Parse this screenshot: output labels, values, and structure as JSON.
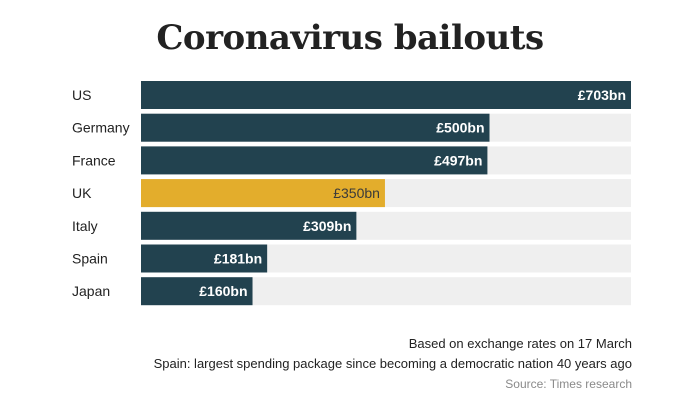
{
  "title": "Coronavirus bailouts",
  "chart_data": {
    "type": "bar",
    "orientation": "horizontal",
    "categories": [
      "US",
      "Germany",
      "France",
      "UK",
      "Italy",
      "Spain",
      "Japan"
    ],
    "values": [
      703,
      500,
      497,
      350,
      309,
      181,
      160
    ],
    "value_labels": [
      "£703bn",
      "£500bn",
      "£497bn",
      "£350bn",
      "£309bn",
      "£181bn",
      "£160bn"
    ],
    "unit": "£bn",
    "xlim": [
      0,
      703
    ],
    "highlight": "UK",
    "colors": {
      "bar": "#22424f",
      "highlight": "#e3ad2c",
      "track": "#efefef",
      "label_on_dark": "#ffffff",
      "label_on_highlight": "#3a3a3a"
    },
    "grid": false,
    "legend": "none"
  },
  "notes": [
    "Based on exchange rates on 17 March",
    "Spain: largest spending package since becoming a democratic nation 40 years ago"
  ],
  "source": "Source: Times research"
}
